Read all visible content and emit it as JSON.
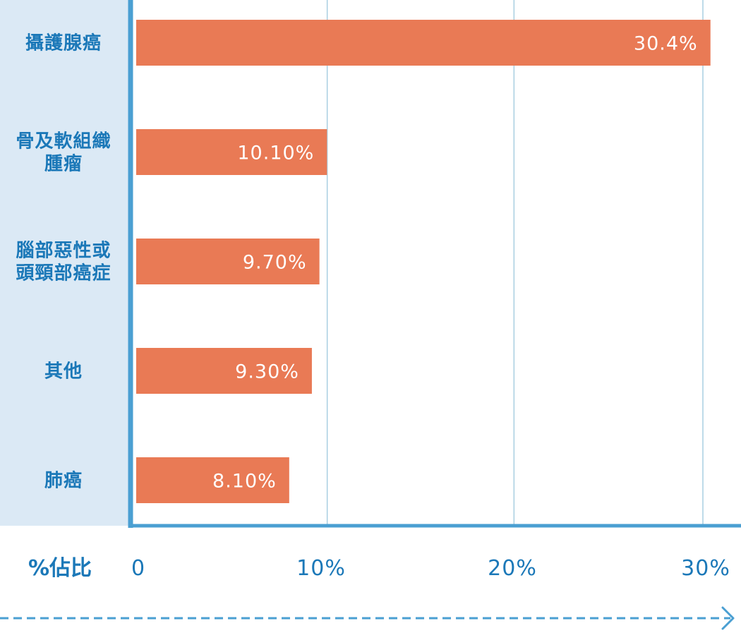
{
  "chart_data": {
    "type": "bar",
    "orientation": "horizontal",
    "xlabel": "%佔比",
    "categories": [
      [
        "攝護腺癌"
      ],
      [
        "骨及軟組織",
        "腫瘤"
      ],
      [
        "腦部惡性或",
        "頭頸部癌症"
      ],
      [
        "其他"
      ],
      [
        "肺癌"
      ]
    ],
    "values": [
      30.4,
      10.1,
      9.7,
      9.3,
      8.1
    ],
    "value_labels": [
      "30.4%",
      "10.10%",
      "9.70%",
      "9.30%",
      "8.10%"
    ],
    "xlim": [
      0,
      30
    ],
    "xticks": [
      0,
      10,
      20,
      30
    ],
    "xtick_labels": [
      "0",
      "10%",
      "20%",
      "30%"
    ],
    "grid": "vertical",
    "colors": {
      "bar": "#e97a55",
      "axis": "#4a9fd2",
      "grid": "#a9cfe2",
      "label_panel": "#dbe9f5",
      "text": "#1b78b8",
      "value_text": "#ffffff"
    }
  }
}
